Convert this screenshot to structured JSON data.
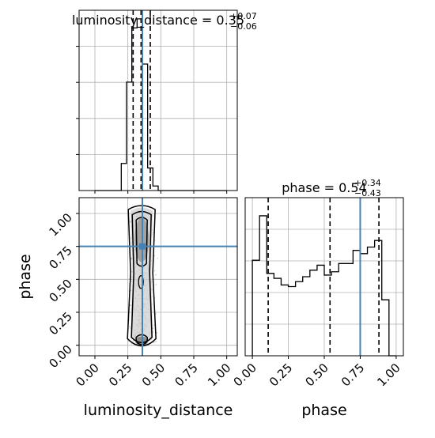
{
  "chart_data": [
    {
      "type": "histogram",
      "panel": "top-left",
      "title_param": "luminosity_distance",
      "title_value": "0.35",
      "title_plus": "+0.07",
      "title_minus": "−0.06",
      "xlim": [
        -0.12,
        1.08
      ],
      "bins": [
        0.0,
        0.04,
        0.08,
        0.12,
        0.16,
        0.2,
        0.24,
        0.28,
        0.32,
        0.36,
        0.4,
        0.44,
        0.48,
        0.52,
        0.56,
        0.6,
        0.64,
        0.68,
        0.72,
        0.76,
        0.8,
        0.84,
        0.88,
        0.92,
        0.96,
        1.0
      ],
      "counts": [
        0,
        0,
        0,
        0,
        0,
        6,
        24,
        36,
        38,
        28,
        5,
        1,
        0,
        0,
        0,
        0,
        0,
        0,
        0,
        0,
        0,
        0,
        0,
        0,
        0
      ],
      "quantiles": [
        0.29,
        0.35,
        0.42
      ],
      "truth": 0.36,
      "grid": true,
      "show_xtick_labels": false,
      "show_ytick_labels": false
    },
    {
      "type": "2d-histogram-contour",
      "panel": "bottom-left",
      "xlabel": "luminosity_distance",
      "ylabel": "phase",
      "xlim": [
        -0.12,
        1.08
      ],
      "ylim": [
        -0.08,
        1.12
      ],
      "xticks": [
        "0.00",
        "0.25",
        "0.50",
        "0.75",
        "1.00"
      ],
      "yticks": [
        "0.00",
        "0.25",
        "0.50",
        "0.75",
        "1.00"
      ],
      "truth": {
        "x": 0.36,
        "y": 0.75
      },
      "grid": true
    },
    {
      "type": "histogram",
      "panel": "bottom-right",
      "title_param": "phase",
      "title_value": "0.54",
      "title_plus": "+0.34",
      "title_minus": "−0.43",
      "xlabel": "phase",
      "xlim": [
        -0.05,
        1.05
      ],
      "xticks": [
        "0.00",
        "0.25",
        "0.50",
        "0.75",
        "1.00"
      ],
      "bins": [
        0.0,
        0.05,
        0.1,
        0.15,
        0.2,
        0.25,
        0.3,
        0.35,
        0.4,
        0.45,
        0.5,
        0.55,
        0.6,
        0.65,
        0.7,
        0.75,
        0.8,
        0.85,
        0.9,
        0.95,
        1.0
      ],
      "counts": [
        58,
        85,
        50,
        47,
        43,
        42,
        45,
        48,
        52,
        55,
        49,
        51,
        56,
        56,
        64,
        62,
        66,
        70,
        34,
        0
      ],
      "ymax": 96,
      "quantiles": [
        0.11,
        0.54,
        0.88
      ],
      "truth": 0.75,
      "grid": true
    }
  ],
  "colors": {
    "truth": "#4682b4",
    "hist": "#000000",
    "quantile": "#000000",
    "grid": "#b0b0b0"
  }
}
